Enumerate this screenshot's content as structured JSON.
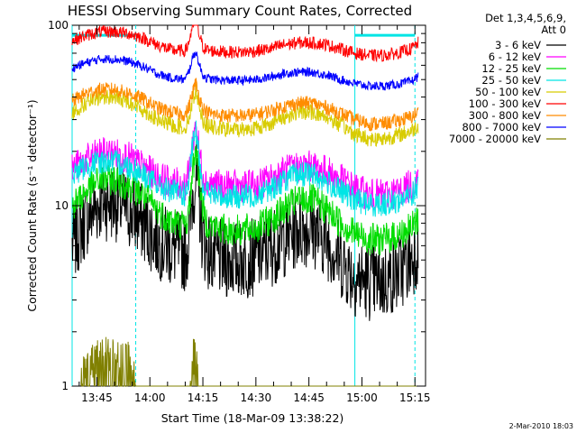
{
  "chart_data": {
    "type": "line",
    "title": "HESSI Observing Summary Count Rates, Corrected",
    "xlabel": "Start Time (18-Mar-09 13:38:22)",
    "ylabel": "Corrected Count Rate (s⁻¹ detector⁻¹)",
    "yscale": "log",
    "ylim": [
      1,
      100
    ],
    "xlim": [
      "13:38",
      "15:18"
    ],
    "x_ticks": [
      "13:45",
      "14:00",
      "14:15",
      "14:30",
      "14:45",
      "15:00",
      "15:15"
    ],
    "y_ticks": [
      "1",
      "10",
      "100"
    ],
    "grid": false,
    "legend_header": [
      "Det 1,3,4,5,6,9,",
      "Att 0"
    ],
    "legend_position": "right",
    "stamp": "2-Mar-2010 18:03",
    "night_intervals": [
      [
        "13:38",
        "13:56"
      ],
      [
        "14:58",
        "15:15"
      ]
    ],
    "x_sample": [
      "13:38",
      "13:42",
      "13:46",
      "13:50",
      "13:54",
      "13:58",
      "14:02",
      "14:06",
      "14:10",
      "14:11",
      "14:12",
      "14:13",
      "14:14",
      "14:15",
      "14:16",
      "14:18",
      "14:22",
      "14:26",
      "14:30",
      "14:34",
      "14:38",
      "14:42",
      "14:46",
      "14:50",
      "14:54",
      "14:58",
      "15:02",
      "15:06",
      "15:10",
      "15:14",
      "15:16"
    ],
    "series": [
      {
        "name": "3 - 6 keV",
        "color": "#000000",
        "values": [
          6.0,
          8.5,
          10.5,
          10.5,
          9.5,
          8.0,
          6.5,
          5.8,
          5.5,
          6.5,
          11,
          15,
          10,
          6.5,
          5.8,
          5.2,
          5.0,
          5.0,
          5.2,
          5.8,
          6.5,
          7.5,
          7.5,
          6.5,
          5.0,
          4.0,
          3.8,
          3.8,
          4.2,
          5.0,
          6.0
        ]
      },
      {
        "name": "6 - 12 keV",
        "color": "#ff00ff",
        "values": [
          16,
          18,
          19.5,
          19.5,
          18.5,
          16.5,
          14.5,
          13.5,
          13,
          15,
          22,
          28,
          20,
          15,
          13.5,
          13,
          12.8,
          12.8,
          13,
          14,
          15.5,
          16.5,
          16.5,
          15.5,
          14,
          12.5,
          11.5,
          11.5,
          12,
          13,
          14.5
        ]
      },
      {
        "name": "12 - 25 keV",
        "color": "#00dd00",
        "values": [
          10,
          12,
          14,
          14,
          13,
          11.5,
          9.5,
          8.2,
          7.8,
          9,
          15,
          21,
          14,
          9.5,
          8.2,
          7.6,
          7.3,
          7.3,
          7.5,
          8.3,
          9.5,
          10.8,
          10.8,
          9.5,
          8.0,
          7.0,
          6.5,
          6.5,
          6.8,
          7.5,
          8.5
        ]
      },
      {
        "name": "25 - 50 keV",
        "color": "#00e5e5",
        "values": [
          15,
          16.5,
          17.5,
          17.5,
          16.5,
          15,
          13,
          12,
          11.5,
          13,
          21,
          26,
          18,
          13,
          12,
          11.5,
          11.2,
          11.2,
          11.5,
          12.3,
          13.8,
          15,
          15,
          13.5,
          12,
          10.8,
          10.2,
          10.2,
          10.6,
          11.5,
          12.8
        ]
      },
      {
        "name": "50 - 100 keV",
        "color": "#d8cc00",
        "values": [
          33,
          37,
          40,
          40,
          38,
          34,
          30,
          28,
          27,
          30,
          38,
          44,
          36,
          30,
          28,
          27,
          26.5,
          26.5,
          27,
          28.5,
          31,
          33,
          33,
          31,
          28,
          25,
          23.5,
          23.5,
          24.5,
          26,
          28
        ]
      },
      {
        "name": "100 - 300 keV",
        "color": "#ff0000",
        "values": [
          82,
          88,
          92,
          92,
          90,
          85,
          78,
          73,
          72,
          80,
          98,
          105,
          88,
          76,
          73,
          72,
          71,
          71,
          72,
          74,
          78,
          80,
          80,
          78,
          74,
          70,
          68,
          68,
          70,
          74,
          80
        ]
      },
      {
        "name": "300 - 800 keV",
        "color": "#ff8c00",
        "values": [
          38,
          42,
          44,
          44,
          42,
          39,
          35,
          33,
          32,
          35,
          42,
          48,
          40,
          35,
          33,
          32,
          31.5,
          31.5,
          32,
          33.5,
          35.5,
          37,
          37,
          35,
          32.5,
          30,
          28.5,
          28.5,
          29.5,
          31,
          33
        ]
      },
      {
        "name": "800 - 7000 keV",
        "color": "#0000ff",
        "values": [
          58,
          62,
          65,
          65,
          63,
          59,
          54,
          51,
          50,
          55,
          65,
          72,
          60,
          53,
          51,
          50,
          49.5,
          49.5,
          50,
          51.5,
          54,
          55,
          55,
          53,
          50,
          47.5,
          46,
          46,
          47,
          49,
          52
        ]
      },
      {
        "name": "7000 - 20000 keV",
        "color": "#808000",
        "values": [
          1.0,
          1.6,
          1.9,
          1.9,
          1.8,
          1.0,
          1.0,
          1.0,
          1.0,
          1.0,
          1.85,
          1.9,
          1.0,
          1.0,
          1.0,
          1.0,
          1.0,
          1.0,
          1.0,
          1.0,
          1.0,
          1.0,
          1.0,
          1.0,
          1.0,
          1.0,
          1.0,
          1.0,
          1.0,
          1.0,
          1.0
        ]
      }
    ]
  }
}
